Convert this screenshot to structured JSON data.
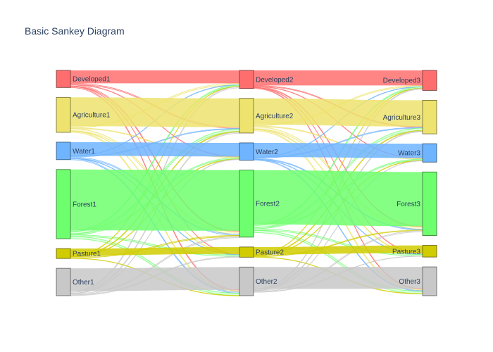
{
  "chart_data": {
    "type": "sankey",
    "title": "Basic Sankey Diagram",
    "nodes": [
      {
        "label": "Developed1",
        "color": "#ff6e6e"
      },
      {
        "label": "Agriculture1",
        "color": "#ede36e"
      },
      {
        "label": "Water1",
        "color": "#6eb4ff"
      },
      {
        "label": "Forest1",
        "color": "#6eff6e"
      },
      {
        "label": "Pasture1",
        "color": "#d1cc00"
      },
      {
        "label": "Other1",
        "color": "#c8c8c8"
      },
      {
        "label": "Developed2",
        "color": "#ff6e6e"
      },
      {
        "label": "Agriculture2",
        "color": "#ede36e"
      },
      {
        "label": "Water2",
        "color": "#6eb4ff"
      },
      {
        "label": "Forest2",
        "color": "#6eff6e"
      },
      {
        "label": "Pasture2",
        "color": "#d1cc00"
      },
      {
        "label": "Other2",
        "color": "#c8c8c8"
      },
      {
        "label": "Developed3",
        "color": "#ff6e6e"
      },
      {
        "label": "Agriculture3",
        "color": "#ede36e"
      },
      {
        "label": "Water3",
        "color": "#6eb4ff"
      },
      {
        "label": "Forest3",
        "color": "#6eff6e"
      },
      {
        "label": "Pasture3",
        "color": "#d1cc00"
      },
      {
        "label": "Other3",
        "color": "#c8c8c8"
      }
    ],
    "links": [
      [
        0,
        6,
        1.7,
        "major"
      ],
      [
        0,
        7,
        0.15,
        "minor"
      ],
      [
        0,
        8,
        0.05,
        "minor"
      ],
      [
        0,
        9,
        0.15,
        "minor"
      ],
      [
        0,
        10,
        0.05,
        "minor"
      ],
      [
        0,
        11,
        0.15,
        "minor"
      ],
      [
        1,
        6,
        0.2,
        "minor"
      ],
      [
        1,
        7,
        3.8,
        "major"
      ],
      [
        1,
        8,
        0.1,
        "minor"
      ],
      [
        1,
        9,
        0.3,
        "minor"
      ],
      [
        1,
        10,
        0.05,
        "minor"
      ],
      [
        1,
        11,
        0.15,
        "minor"
      ],
      [
        2,
        6,
        0.05,
        "minor"
      ],
      [
        2,
        7,
        0.1,
        "minor"
      ],
      [
        2,
        8,
        1.8,
        "major"
      ],
      [
        2,
        9,
        0.15,
        "minor"
      ],
      [
        2,
        10,
        0.05,
        "minor"
      ],
      [
        2,
        11,
        0.15,
        "minor"
      ],
      [
        3,
        6,
        0.15,
        "minor"
      ],
      [
        3,
        7,
        0.3,
        "minor"
      ],
      [
        3,
        8,
        0.15,
        "minor"
      ],
      [
        3,
        9,
        8.0,
        "major"
      ],
      [
        3,
        10,
        0.2,
        "minor"
      ],
      [
        3,
        11,
        0.3,
        "minor"
      ],
      [
        4,
        6,
        0.05,
        "minor"
      ],
      [
        4,
        7,
        0.1,
        "minor"
      ],
      [
        4,
        8,
        0.05,
        "minor"
      ],
      [
        4,
        9,
        0.15,
        "minor"
      ],
      [
        4,
        10,
        0.9,
        "major"
      ],
      [
        4,
        11,
        0.05,
        "minor"
      ],
      [
        5,
        6,
        0.15,
        "minor"
      ],
      [
        5,
        7,
        0.15,
        "minor"
      ],
      [
        5,
        8,
        0.05,
        "minor"
      ],
      [
        5,
        9,
        0.15,
        "minor"
      ],
      [
        5,
        10,
        0.1,
        "minor"
      ],
      [
        5,
        11,
        3.0,
        "major"
      ],
      [
        6,
        12,
        2.0,
        "major"
      ],
      [
        6,
        13,
        0.1,
        "minor"
      ],
      [
        6,
        14,
        0.05,
        "minor"
      ],
      [
        6,
        15,
        0.1,
        "minor"
      ],
      [
        6,
        16,
        0.05,
        "minor"
      ],
      [
        6,
        17,
        0.1,
        "minor"
      ],
      [
        7,
        12,
        0.15,
        "minor"
      ],
      [
        7,
        13,
        3.5,
        "major"
      ],
      [
        7,
        14,
        0.1,
        "minor"
      ],
      [
        7,
        15,
        0.3,
        "minor"
      ],
      [
        7,
        16,
        0.1,
        "minor"
      ],
      [
        7,
        17,
        0.15,
        "minor"
      ],
      [
        8,
        12,
        0.05,
        "minor"
      ],
      [
        8,
        13,
        0.1,
        "minor"
      ],
      [
        8,
        14,
        1.9,
        "major"
      ],
      [
        8,
        15,
        0.1,
        "minor"
      ],
      [
        8,
        16,
        0.05,
        "minor"
      ],
      [
        8,
        17,
        0.1,
        "minor"
      ],
      [
        9,
        12,
        0.15,
        "minor"
      ],
      [
        9,
        13,
        0.3,
        "minor"
      ],
      [
        9,
        14,
        0.15,
        "minor"
      ],
      [
        9,
        15,
        7.2,
        "major"
      ],
      [
        9,
        16,
        0.2,
        "minor"
      ],
      [
        9,
        17,
        0.3,
        "minor"
      ],
      [
        10,
        12,
        0.05,
        "minor"
      ],
      [
        10,
        13,
        0.1,
        "minor"
      ],
      [
        10,
        14,
        0.05,
        "minor"
      ],
      [
        10,
        15,
        0.1,
        "minor"
      ],
      [
        10,
        16,
        1.0,
        "major"
      ],
      [
        10,
        17,
        0.05,
        "minor"
      ],
      [
        11,
        12,
        0.1,
        "minor"
      ],
      [
        11,
        13,
        0.1,
        "minor"
      ],
      [
        11,
        14,
        0.05,
        "minor"
      ],
      [
        11,
        15,
        0.15,
        "minor"
      ],
      [
        11,
        16,
        0.05,
        "minor"
      ],
      [
        11,
        17,
        2.9,
        "major"
      ]
    ]
  }
}
